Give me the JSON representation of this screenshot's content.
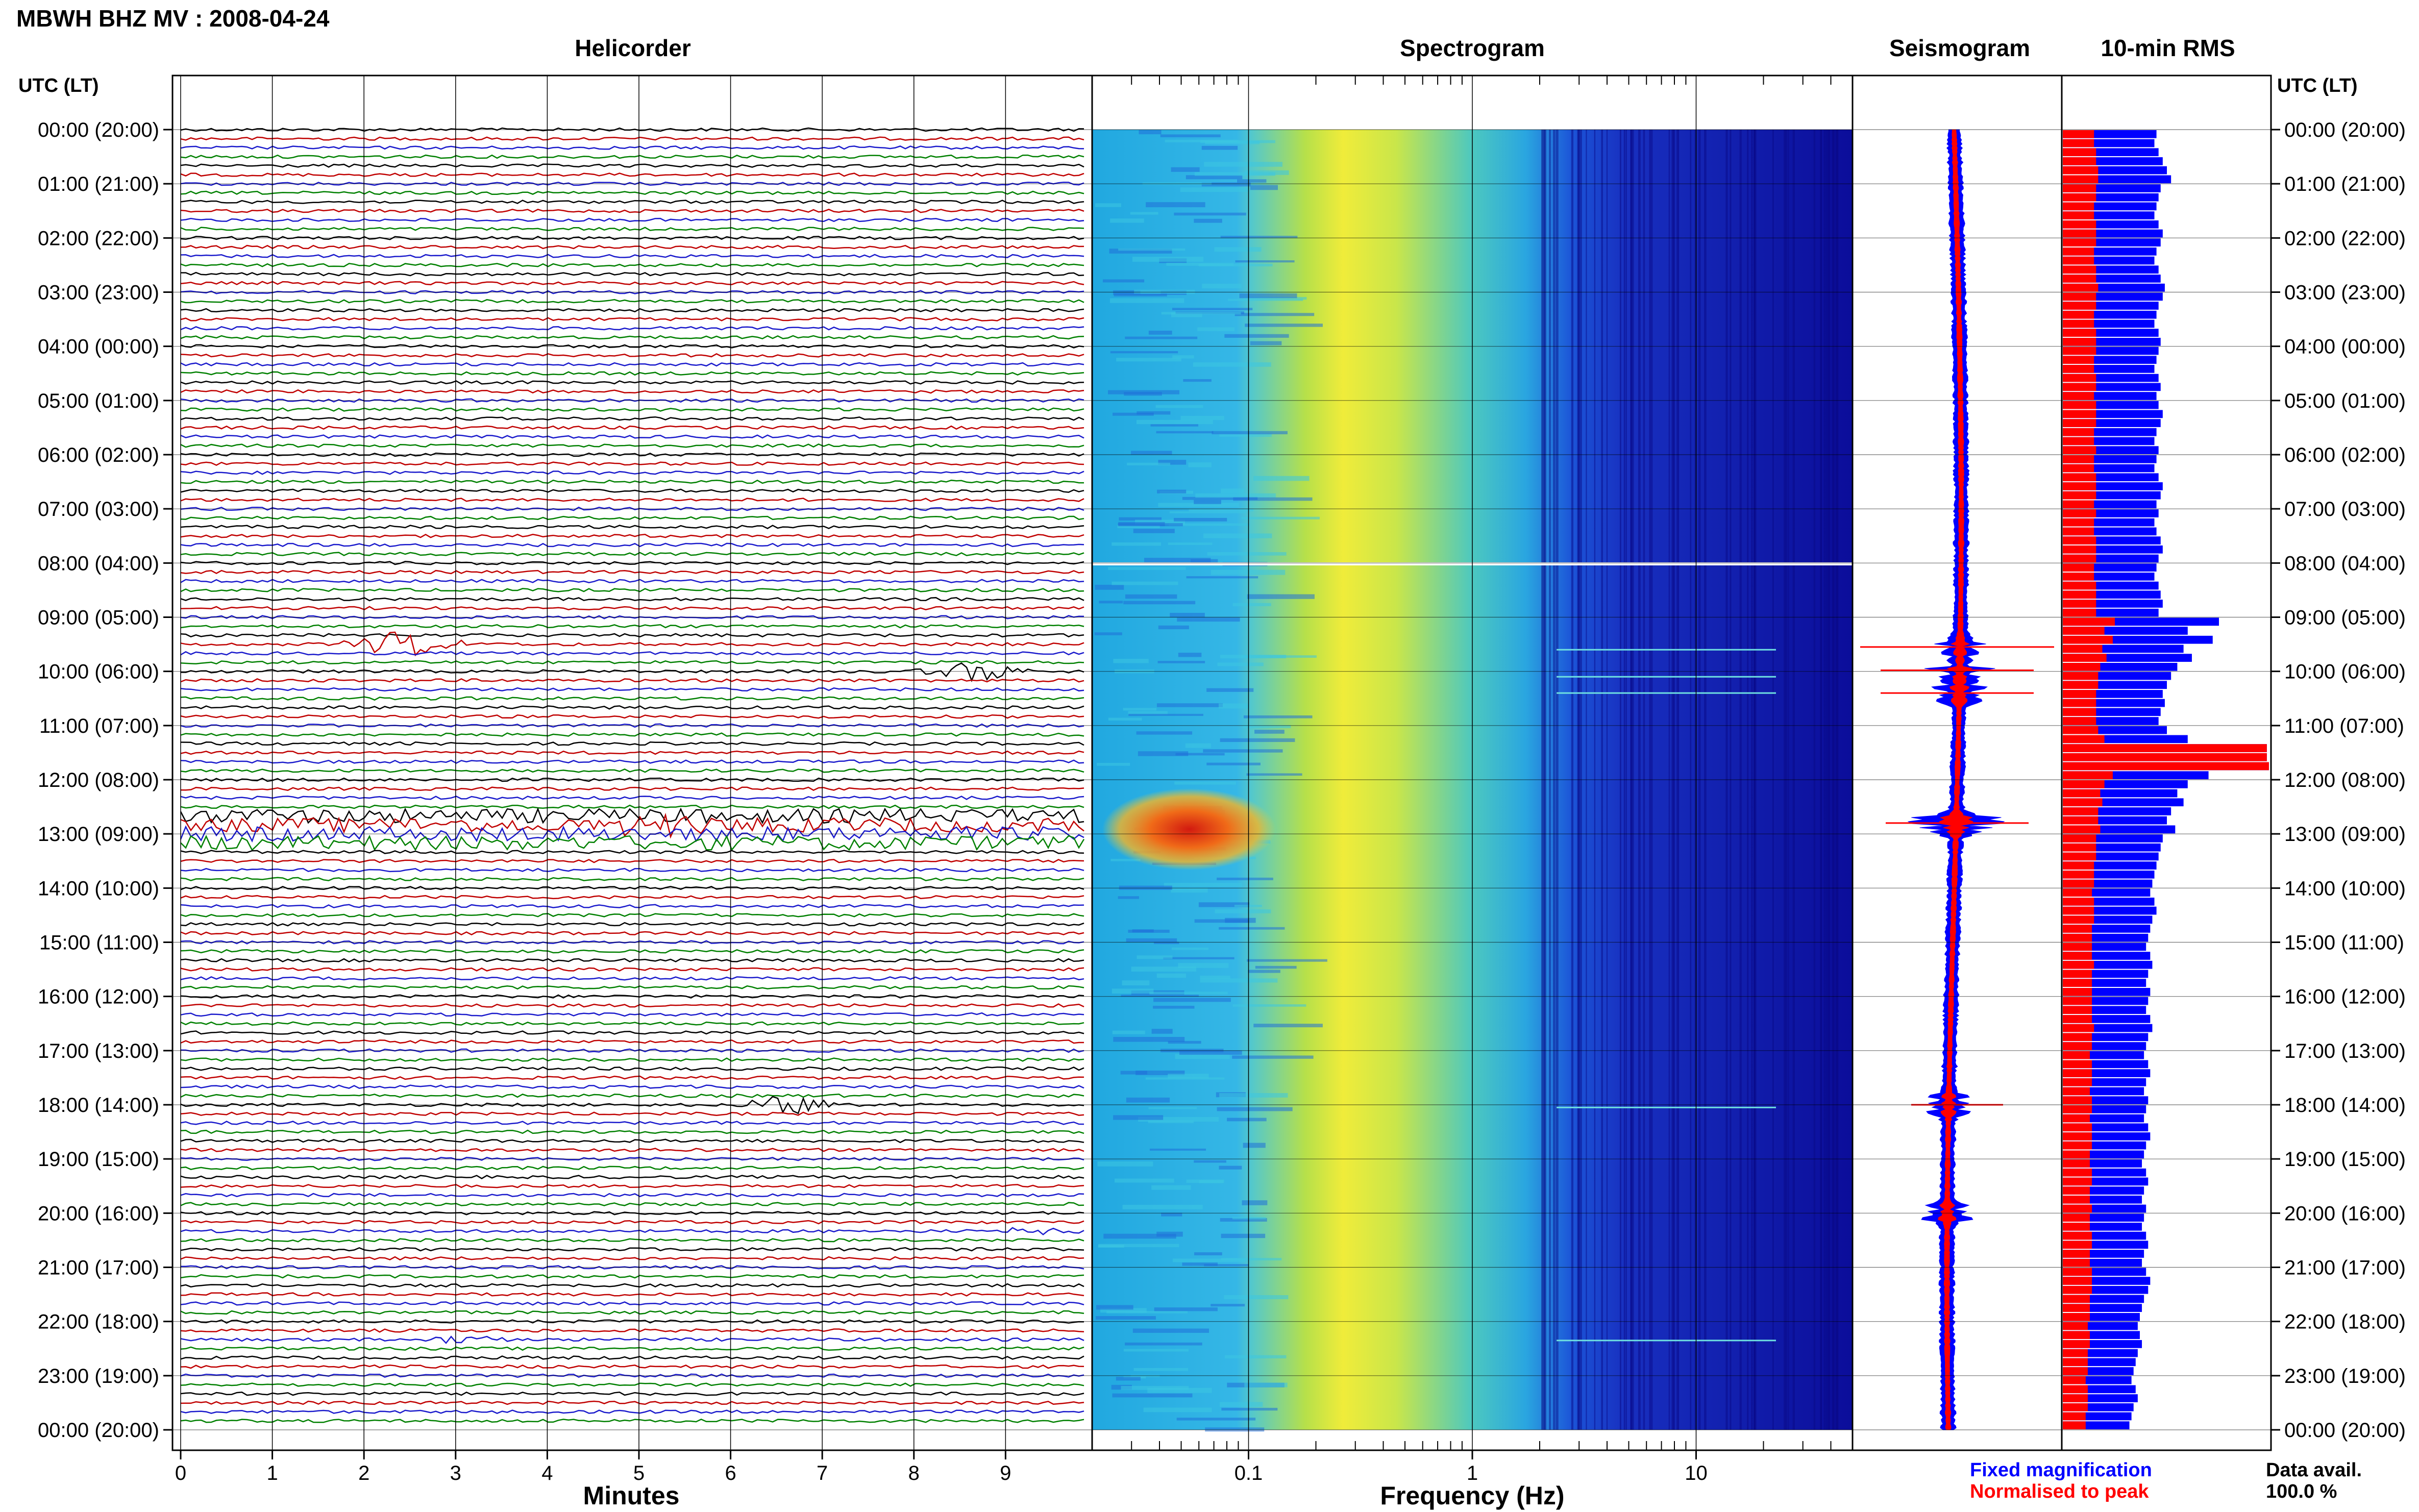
{
  "header": {
    "station_title": "MBWH BHZ MV : 2008-04-24"
  },
  "panels": {
    "helicorder_title": "Helicorder",
    "spectrogram_title": "Spectrogram",
    "seismogram_title": "Seismogram",
    "rms_title": "10-min RMS"
  },
  "time_axis": {
    "left_label": "UTC (LT)",
    "right_label": "UTC (LT)",
    "tick_labels": [
      "00:00 (20:00)",
      "01:00 (21:00)",
      "02:00 (22:00)",
      "03:00 (23:00)",
      "04:00 (00:00)",
      "05:00 (01:00)",
      "06:00 (02:00)",
      "07:00 (03:00)",
      "08:00 (04:00)",
      "09:00 (05:00)",
      "10:00 (06:00)",
      "11:00 (07:00)",
      "12:00 (08:00)",
      "13:00 (09:00)",
      "14:00 (10:00)",
      "15:00 (11:00)",
      "16:00 (12:00)",
      "17:00 (13:00)",
      "18:00 (14:00)",
      "19:00 (15:00)",
      "20:00 (16:00)",
      "21:00 (17:00)",
      "22:00 (18:00)",
      "23:00 (19:00)",
      "00:00 (20:00)"
    ]
  },
  "helicorder_axis": {
    "xlabel": "Minutes",
    "ticks": [
      "0",
      "1",
      "2",
      "3",
      "4",
      "5",
      "6",
      "7",
      "8",
      "9"
    ],
    "trace_colors": [
      "#000000",
      "#c00000",
      "#1a1acc",
      "#008000"
    ]
  },
  "spectrogram_axis": {
    "xlabel": "Frequency (Hz)",
    "ticks": [
      "0.1",
      "1",
      "10"
    ],
    "scale": "log",
    "xlim_hz": [
      0.02,
      50
    ]
  },
  "legend": {
    "fixed_label": "Fixed magnification",
    "fixed_color": "#0000ff",
    "normalised_label": "Normalised to peak",
    "normalised_color": "#ff0000"
  },
  "availability": {
    "label": "Data avail.",
    "value": "100.0 %"
  },
  "chart_data": [
    {
      "type": "line",
      "name": "helicorder",
      "title": "Helicorder",
      "xlabel": "Minutes",
      "x_range_minutes": [
        0,
        10
      ],
      "rows_per_hour": 6,
      "hours": 24,
      "events": [
        {
          "utc_hour": 9.5,
          "minute": 2.3,
          "amplitude": 2.5
        },
        {
          "utc_hour": 10.0,
          "minute": 8.2,
          "amplitude": 2.0
        },
        {
          "utc_hour": 12.9,
          "minute": 5.0,
          "amplitude": 1.8
        },
        {
          "utc_hour": 18.0,
          "minute": 6.2,
          "amplitude": 2.0
        },
        {
          "utc_hour": 22.3,
          "minute": 2.8,
          "amplitude": 0.8
        },
        {
          "utc_hour": 20.3,
          "minute": 8.8,
          "amplitude": 0.6
        }
      ]
    },
    {
      "type": "heatmap",
      "name": "spectrogram",
      "title": "Spectrogram",
      "xlabel": "Frequency (Hz)",
      "x_scale": "log",
      "xlim": [
        0.02,
        50
      ],
      "peak_band_hz": [
        0.15,
        1.5
      ],
      "strong_event_utc_hour": 12.85
    },
    {
      "type": "line",
      "name": "seismogram",
      "title": "Seismogram",
      "series": [
        {
          "name": "Fixed magnification",
          "color": "#0000ff"
        },
        {
          "name": "Normalised to peak",
          "color": "#ff0000"
        }
      ],
      "spikes_utc_hour": [
        9.55,
        9.98,
        10.4,
        12.8,
        18.0,
        20.0
      ]
    },
    {
      "type": "bar",
      "name": "rms",
      "title": "10-min RMS",
      "orientation": "horizontal",
      "xlim": [
        0,
        100
      ],
      "series": [
        {
          "name": "Fixed magnification",
          "color": "#0000ff",
          "values": [
            45,
            44,
            46,
            48,
            50,
            52,
            47,
            46,
            45,
            44,
            46,
            48,
            47,
            45,
            44,
            46,
            47,
            49,
            48,
            46,
            45,
            44,
            46,
            47,
            46,
            45,
            44,
            46,
            47,
            45,
            46,
            48,
            47,
            45,
            44,
            46,
            45,
            44,
            46,
            48,
            47,
            45,
            46,
            44,
            45,
            47,
            48,
            46,
            45,
            44,
            46,
            47,
            48,
            46,
            75,
            60,
            72,
            58,
            62,
            55,
            52,
            50,
            48,
            49,
            47,
            46,
            50,
            60,
            98,
            98,
            99,
            70,
            60,
            55,
            58,
            52,
            50,
            54,
            48,
            47,
            46,
            45,
            44,
            43,
            42,
            44,
            45,
            43,
            42,
            41,
            40,
            42,
            43,
            41,
            40,
            42,
            41,
            40,
            42,
            43,
            41,
            40,
            39,
            41,
            42,
            40,
            39,
            41,
            40,
            39,
            41,
            42,
            40,
            39,
            38,
            40,
            41,
            39,
            38,
            40,
            39,
            38,
            40,
            41,
            39,
            38,
            40,
            42,
            41,
            39,
            38,
            37,
            36,
            37,
            38,
            36,
            35,
            34,
            33,
            35,
            36,
            34,
            33,
            32
          ]
        },
        {
          "name": "Normalised to peak",
          "color": "#ff0000",
          "values": [
            15,
            15,
            16,
            16,
            17,
            17,
            16,
            16,
            15,
            15,
            16,
            16,
            16,
            15,
            15,
            16,
            16,
            17,
            16,
            16,
            15,
            15,
            16,
            16,
            16,
            15,
            15,
            16,
            16,
            15,
            16,
            16,
            16,
            15,
            15,
            16,
            15,
            15,
            16,
            16,
            16,
            15,
            16,
            15,
            15,
            16,
            16,
            16,
            15,
            15,
            16,
            16,
            16,
            16,
            25,
            20,
            24,
            19,
            21,
            18,
            17,
            17,
            16,
            16,
            16,
            16,
            17,
            20,
            98,
            98,
            99,
            24,
            20,
            18,
            19,
            17,
            17,
            18,
            16,
            16,
            16,
            15,
            15,
            15,
            14,
            15,
            15,
            15,
            14,
            14,
            14,
            14,
            15,
            14,
            14,
            14,
            14,
            14,
            14,
            15,
            14,
            14,
            13,
            14,
            14,
            14,
            13,
            14,
            14,
            13,
            14,
            14,
            14,
            13,
            13,
            14,
            14,
            13,
            13,
            14,
            13,
            13,
            14,
            14,
            13,
            13,
            14,
            14,
            14,
            13,
            13,
            13,
            12,
            13,
            13,
            12,
            12,
            12,
            11,
            12,
            12,
            12,
            11,
            11
          ]
        }
      ]
    }
  ]
}
